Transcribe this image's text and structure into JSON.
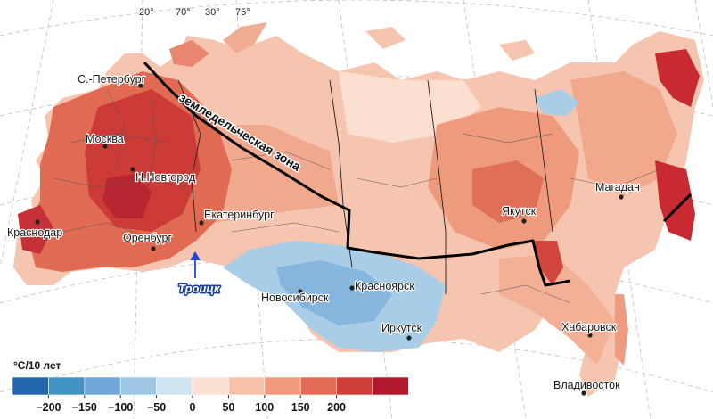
{
  "map": {
    "longitude_labels": [
      "20°",
      "70°",
      "30°",
      "75°"
    ],
    "zone_label": "земледельческая зона",
    "highlight_city": "Троицк",
    "cities": [
      {
        "id": "spb",
        "name": "С.-Петербург"
      },
      {
        "id": "moscow",
        "name": "Москва"
      },
      {
        "id": "nnovgorod",
        "name": "Н.Новгород"
      },
      {
        "id": "krasnodar",
        "name": "Краснодар"
      },
      {
        "id": "orenburg",
        "name": "Оренбург"
      },
      {
        "id": "ekaterinburg",
        "name": "Екатеринбург"
      },
      {
        "id": "novosibirsk",
        "name": "Новосибирск"
      },
      {
        "id": "krasnoyarsk",
        "name": "Красноярск"
      },
      {
        "id": "irkutsk",
        "name": "Иркутск"
      },
      {
        "id": "yakutsk",
        "name": "Якутск"
      },
      {
        "id": "magadan",
        "name": "Магадан"
      },
      {
        "id": "khabarovsk",
        "name": "Хабаровск"
      },
      {
        "id": "vladivostok",
        "name": "Владивосток"
      }
    ]
  },
  "legend": {
    "title": "°C/10 лет",
    "colors": [
      "#2166ac",
      "#4393c3",
      "#6fa8d6",
      "#9cc6e4",
      "#cfe3f1",
      "#fbe1d3",
      "#f7c1a7",
      "#f0997c",
      "#e36c56",
      "#cf3f3a",
      "#b2182b"
    ],
    "ticks": [
      "−200",
      "−150",
      "−100",
      "−50",
      "0",
      "50",
      "100",
      "150",
      "200"
    ]
  },
  "palette": {
    "strong_warming": "#c92a32",
    "warming": "#e8775e",
    "mild_warming": "#f4b39a",
    "weak_warming": "#fad6c6",
    "cooling": "#a9cde6",
    "strong_cooling": "#7fb2da",
    "background": "#ffffff",
    "zone_line": "#000000",
    "troitsk_arrow": "#2244cc"
  }
}
